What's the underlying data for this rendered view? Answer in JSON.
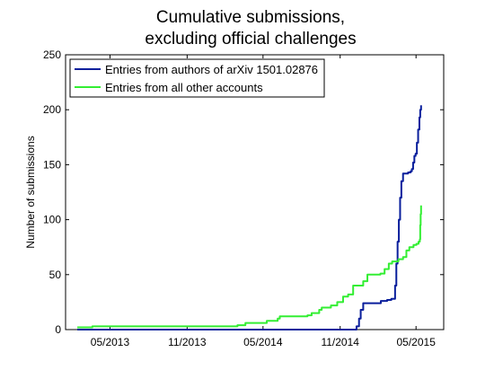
{
  "chart_data": {
    "type": "line",
    "title": [
      "Cumulative submissions,",
      "excluding official challenges"
    ],
    "xlabel": "",
    "ylabel": "Number of submissions",
    "xlim": [
      "2013-01-15",
      "2015-07-06"
    ],
    "ylim": [
      0,
      250
    ],
    "x_ticks": [
      {
        "date": "2013-05-01",
        "label": "05/2013"
      },
      {
        "date": "2013-11-01",
        "label": "11/2013"
      },
      {
        "date": "2014-05-01",
        "label": "05/2014"
      },
      {
        "date": "2014-11-01",
        "label": "11/2014"
      },
      {
        "date": "2015-05-01",
        "label": "05/2015"
      }
    ],
    "y_ticks": [
      0,
      50,
      100,
      150,
      200,
      250
    ],
    "grid": false,
    "legend": "top-left",
    "series": [
      {
        "name": "Entries from authors of arXiv 1501.02876",
        "color": "#0a1f9c",
        "points": [
          [
            "2013-02-12",
            0
          ],
          [
            "2014-12-03",
            0
          ],
          [
            "2014-12-10",
            3
          ],
          [
            "2014-12-16",
            10
          ],
          [
            "2014-12-20",
            18
          ],
          [
            "2014-12-26",
            24
          ],
          [
            "2015-01-31",
            24
          ],
          [
            "2015-02-06",
            26
          ],
          [
            "2015-02-21",
            27
          ],
          [
            "2015-03-03",
            28
          ],
          [
            "2015-03-12",
            40
          ],
          [
            "2015-03-15",
            60
          ],
          [
            "2015-03-18",
            80
          ],
          [
            "2015-03-21",
            100
          ],
          [
            "2015-03-24",
            120
          ],
          [
            "2015-03-27",
            135
          ],
          [
            "2015-03-31",
            142
          ],
          [
            "2015-04-12",
            143
          ],
          [
            "2015-04-18",
            144
          ],
          [
            "2015-04-21",
            146
          ],
          [
            "2015-04-24",
            152
          ],
          [
            "2015-04-27",
            158
          ],
          [
            "2015-04-30",
            160
          ],
          [
            "2015-05-03",
            170
          ],
          [
            "2015-05-06",
            182
          ],
          [
            "2015-05-09",
            193
          ],
          [
            "2015-05-11",
            200
          ],
          [
            "2015-05-13",
            204
          ]
        ]
      },
      {
        "name": "Entries from all other accounts",
        "color": "#33ee33",
        "points": [
          [
            "2013-02-12",
            2
          ],
          [
            "2013-03-20",
            3
          ],
          [
            "2013-09-01",
            3
          ],
          [
            "2014-03-01",
            4
          ],
          [
            "2014-03-20",
            6
          ],
          [
            "2014-05-10",
            8
          ],
          [
            "2014-06-05",
            10
          ],
          [
            "2014-06-10",
            12
          ],
          [
            "2014-08-15",
            13
          ],
          [
            "2014-08-25",
            15
          ],
          [
            "2014-09-12",
            18
          ],
          [
            "2014-09-18",
            20
          ],
          [
            "2014-10-10",
            22
          ],
          [
            "2014-10-25",
            25
          ],
          [
            "2014-11-08",
            30
          ],
          [
            "2014-11-20",
            32
          ],
          [
            "2014-12-02",
            40
          ],
          [
            "2014-12-26",
            44
          ],
          [
            "2015-01-05",
            50
          ],
          [
            "2015-02-05",
            51
          ],
          [
            "2015-02-15",
            55
          ],
          [
            "2015-02-25",
            60
          ],
          [
            "2015-03-05",
            62
          ],
          [
            "2015-03-20",
            64
          ],
          [
            "2015-03-31",
            66
          ],
          [
            "2015-04-08",
            72
          ],
          [
            "2015-04-15",
            75
          ],
          [
            "2015-04-25",
            77
          ],
          [
            "2015-05-02",
            78
          ],
          [
            "2015-05-07",
            80
          ],
          [
            "2015-05-10",
            82
          ],
          [
            "2015-05-11",
            95
          ],
          [
            "2015-05-12",
            105
          ],
          [
            "2015-05-13",
            113
          ]
        ]
      }
    ]
  }
}
